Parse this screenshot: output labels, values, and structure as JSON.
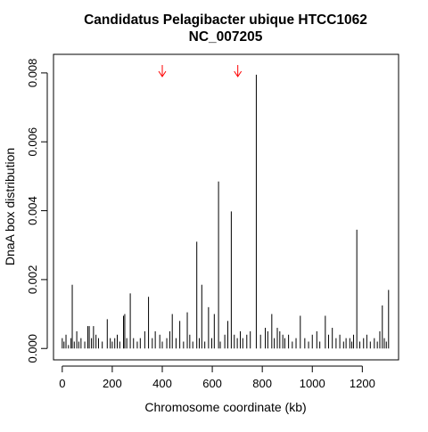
{
  "chart_data": {
    "type": "bar",
    "title": "Candidatus Pelagibacter ubique HTCC1062",
    "subtitle": "NC_007205",
    "xlabel": "Chromosome coordinate (kb)",
    "ylabel": "DnaA box distribution",
    "xlim": [
      -35,
      1345
    ],
    "ylim": [
      -0.00033,
      0.00854
    ],
    "x_ticks": [
      0,
      200,
      400,
      600,
      800,
      1000,
      1200
    ],
    "x_tick_labels": [
      "0",
      "200",
      "400",
      "600",
      "800",
      "1000",
      "1200"
    ],
    "y_ticks": [
      0,
      0.002,
      0.004,
      0.006,
      0.008
    ],
    "y_tick_labels": [
      "0.000",
      "0.002",
      "0.004",
      "0.006",
      "0.008"
    ],
    "grid": false,
    "legend": "none",
    "series_color": "#000000",
    "marker_color": "#ff0000",
    "markers": [
      {
        "name": "arrow-1",
        "x": 400
      },
      {
        "name": "arrow-2",
        "x": 702
      }
    ],
    "x": [
      0,
      7,
      15,
      25,
      35,
      40,
      48,
      58,
      66,
      75,
      90,
      102,
      108,
      117,
      125,
      135,
      145,
      160,
      180,
      192,
      200,
      210,
      220,
      230,
      245,
      250,
      258,
      272,
      285,
      300,
      312,
      330,
      345,
      360,
      372,
      390,
      400,
      418,
      430,
      440,
      455,
      470,
      485,
      500,
      510,
      522,
      538,
      548,
      558,
      570,
      585,
      598,
      608,
      625,
      632,
      650,
      662,
      676,
      688,
      700,
      712,
      722,
      738,
      752,
      776,
      793,
      812,
      822,
      838,
      848,
      860,
      870,
      882,
      890,
      905,
      920,
      935,
      952,
      970,
      985,
      1000,
      1018,
      1030,
      1052,
      1065,
      1080,
      1095,
      1110,
      1125,
      1135,
      1150,
      1158,
      1165,
      1178,
      1190,
      1205,
      1218,
      1232,
      1248,
      1260,
      1270,
      1280,
      1288,
      1296,
      1305
    ],
    "values": [
      0.0003,
      0.0002,
      0.0004,
      0.0001,
      0.0003,
      0.00185,
      0.0002,
      0.0005,
      0.0002,
      0.0003,
      0.0002,
      0.00065,
      0.00065,
      0.0003,
      0.00065,
      0.0004,
      0.0003,
      0.0002,
      0.00085,
      0.0003,
      0.0002,
      0.0003,
      0.0004,
      0.0002,
      0.00095,
      0.001,
      0.0003,
      0.0016,
      0.0003,
      0.0002,
      0.0003,
      0.0005,
      0.0015,
      0.0003,
      0.0005,
      0.0004,
      0.0002,
      0.0003,
      0.0005,
      0.001,
      0.0003,
      0.0008,
      0.0002,
      0.00105,
      0.0004,
      0.0002,
      0.0031,
      0.0003,
      0.00185,
      0.0002,
      0.0012,
      0.0003,
      0.001,
      0.00485,
      0.0002,
      0.0004,
      0.0008,
      0.00398,
      0.0004,
      0.0003,
      0.0005,
      0.0003,
      0.0004,
      0.0005,
      0.00795,
      0.0004,
      0.0006,
      0.0005,
      0.001,
      0.0003,
      0.0006,
      0.0005,
      0.0004,
      0.0003,
      0.0004,
      0.0002,
      0.0003,
      0.00095,
      0.0003,
      0.0002,
      0.0004,
      0.0005,
      0.0002,
      0.00095,
      0.0004,
      0.0006,
      0.0003,
      0.0004,
      0.0002,
      0.0003,
      0.0003,
      0.0002,
      0.0004,
      0.00345,
      0.0002,
      0.0003,
      0.0004,
      0.0002,
      0.0003,
      0.0002,
      0.0005,
      0.00125,
      0.0003,
      0.0002,
      0.0017
    ]
  }
}
